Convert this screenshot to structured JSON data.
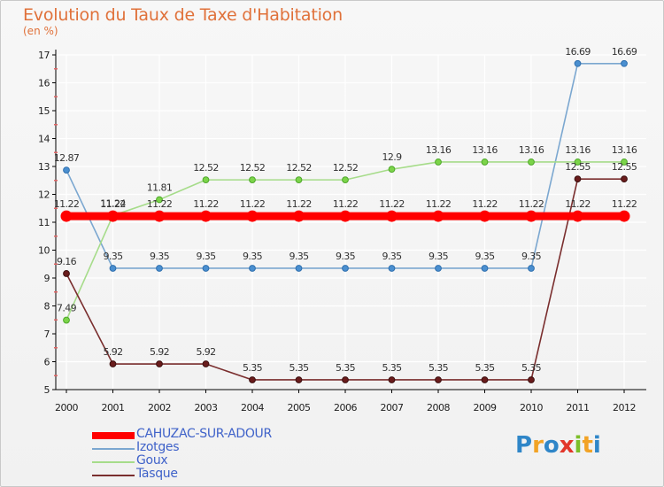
{
  "title": "Evolution du Taux de Taxe d'Habitation",
  "subtitle": "(en %)",
  "colors": {
    "title": "#e0713a",
    "axis": "#000000",
    "tick": "#e06565",
    "grid": "#ffffff"
  },
  "logo": {
    "letters": [
      "P",
      "r",
      "o",
      "x",
      "i",
      "t",
      "i"
    ],
    "colors": [
      "#2f86c8",
      "#f2a325",
      "#2f86c8",
      "#e2362a",
      "#7cbf2a",
      "#f2a325",
      "#2f86c8"
    ]
  },
  "chart_data": {
    "type": "line",
    "title": "Evolution du Taux de Taxe d'Habitation",
    "ylabel": "(en %)",
    "xlabel": "",
    "ylim": [
      5,
      17
    ],
    "yticks": [
      5,
      6,
      7,
      8,
      9,
      10,
      11,
      12,
      13,
      14,
      15,
      16,
      17
    ],
    "grid": true,
    "legend_position": "bottom-left",
    "x": [
      "2000",
      "2001",
      "2002",
      "2003",
      "2004",
      "2005",
      "2006",
      "2007",
      "2008",
      "2009",
      "2010",
      "2011",
      "2012"
    ],
    "series": [
      {
        "name": "CAHUZAC-SUR-ADOUR",
        "color": "#ff0000",
        "values": [
          11.22,
          11.22,
          11.22,
          11.22,
          11.22,
          11.22,
          11.22,
          11.22,
          11.22,
          11.22,
          11.22,
          11.22,
          11.22
        ],
        "labels": [
          "11.22",
          "11.22",
          "11.22",
          "11.22",
          "11.22",
          "11.22",
          "11.22",
          "11.22",
          "11.22",
          "11.22",
          "11.22",
          "11.22",
          "11.22"
        ]
      },
      {
        "name": "Izotges",
        "color": "#7ba7d0",
        "values": [
          12.87,
          9.35,
          9.35,
          9.35,
          9.35,
          9.35,
          9.35,
          9.35,
          9.35,
          9.35,
          9.35,
          16.69,
          16.69
        ],
        "labels": [
          "12.87",
          "9.35",
          "9.35",
          "9.35",
          "9.35",
          "9.35",
          "9.35",
          "9.35",
          "9.35",
          "9.35",
          "9.35",
          "16.69",
          "16.69"
        ]
      },
      {
        "name": "Goux",
        "color": "#a6dc8a",
        "values": [
          7.49,
          11.24,
          11.81,
          12.52,
          12.52,
          12.52,
          12.52,
          12.9,
          13.16,
          13.16,
          13.16,
          13.16,
          13.16
        ],
        "labels": [
          "7.49",
          "11.24",
          "11.81",
          "12.52",
          "12.52",
          "12.52",
          "12.52",
          "12.9",
          "13.16",
          "13.16",
          "13.16",
          "13.16",
          "13.16"
        ]
      },
      {
        "name": "Tasque",
        "color": "#7a2e2e",
        "values": [
          9.16,
          5.92,
          5.92,
          5.92,
          5.35,
          5.35,
          5.35,
          5.35,
          5.35,
          5.35,
          5.35,
          12.55,
          12.55
        ],
        "labels": [
          "9.16",
          "5.92",
          "5.92",
          "5.92",
          "5.35",
          "5.35",
          "5.35",
          "5.35",
          "5.35",
          "5.35",
          "5.35",
          "12.55",
          "12.55"
        ]
      }
    ]
  }
}
